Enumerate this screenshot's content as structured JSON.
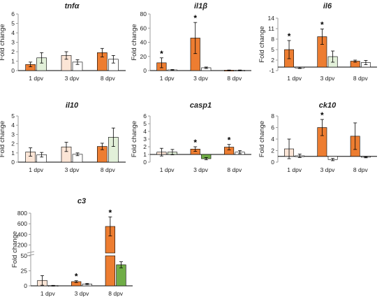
{
  "colors": {
    "orange": "#ED7D31",
    "light_orange": "#FBE5D6",
    "green": "#70AD47",
    "light_green": "#E2F0D9",
    "white": "#FFFFFF",
    "axis": "#9E9E9E",
    "text": "#222222"
  },
  "chart_data": [
    {
      "type": "bar",
      "title": "tnfα",
      "ylabel": "Fold change",
      "categories": [
        "1 dpv",
        "3 dpv",
        "8 dpv"
      ],
      "ylim": [
        0,
        6
      ],
      "yticks": [
        "0",
        "1",
        "2",
        "3",
        "4",
        "5",
        "6"
      ],
      "ytick_values": [
        0,
        1,
        2,
        3,
        4,
        5,
        6
      ],
      "grid": false,
      "bars": [
        [
          {
            "value": 0.65,
            "error": 0.25,
            "color": "orange",
            "star": false
          },
          {
            "value": 1.35,
            "error": 0.55,
            "color": "light_green",
            "star": false
          }
        ],
        [
          {
            "value": 1.6,
            "error": 0.4,
            "color": "light_orange",
            "star": false
          },
          {
            "value": 0.9,
            "error": 0.25,
            "color": "white",
            "star": false
          }
        ],
        [
          {
            "value": 1.9,
            "error": 0.45,
            "color": "orange",
            "star": false
          },
          {
            "value": 1.2,
            "error": 0.4,
            "color": "white",
            "star": false
          }
        ]
      ]
    },
    {
      "type": "bar",
      "title": "il1β",
      "ylabel": "Fold change",
      "categories": [
        "1 dpv",
        "3 dpv",
        "8 dpv"
      ],
      "ylim": [
        0,
        80
      ],
      "yticks": [
        "0",
        "20",
        "40",
        "60",
        "80"
      ],
      "ytick_values": [
        0,
        20,
        40,
        60,
        80
      ],
      "grid": false,
      "bars": [
        [
          {
            "value": 11,
            "error": 7,
            "color": "orange",
            "star": true
          },
          {
            "value": 1,
            "error": 0.5,
            "color": "white",
            "star": false
          }
        ],
        [
          {
            "value": 46,
            "error": 22,
            "color": "orange",
            "star": true
          },
          {
            "value": 4,
            "error": 1,
            "color": "white",
            "star": false
          }
        ],
        [
          {
            "value": 0.5,
            "error": 0.3,
            "color": "orange",
            "star": false
          },
          {
            "value": 0.5,
            "error": 0.3,
            "color": "white",
            "star": false
          }
        ]
      ]
    },
    {
      "type": "bar",
      "title": "il6",
      "ylabel": "Fold change",
      "categories": [
        "1 dpv",
        "3 dpv",
        "8 dpv"
      ],
      "ylim": [
        -1,
        14
      ],
      "yticks": [
        "-1",
        "2",
        "5",
        "8",
        "11",
        "14"
      ],
      "ytick_values": [
        -1,
        2,
        5,
        8,
        11,
        14
      ],
      "baseline": 0,
      "grid": false,
      "bars": [
        [
          {
            "value": 5,
            "error": 2.6,
            "color": "orange",
            "star": true
          },
          {
            "value": -0.2,
            "error": 0.2,
            "color": "white",
            "star": false
          }
        ],
        [
          {
            "value": 8.7,
            "error": 2.2,
            "color": "orange",
            "star": true
          },
          {
            "value": 3,
            "error": 1.6,
            "color": "light_green",
            "star": false
          }
        ],
        [
          {
            "value": 1.7,
            "error": 0.3,
            "color": "orange",
            "star": false
          },
          {
            "value": 1.3,
            "error": 0.6,
            "color": "white",
            "star": false
          }
        ]
      ]
    },
    {
      "type": "bar",
      "title": "il10",
      "ylabel": "Fold change",
      "categories": [
        "1 dpv",
        "3 dpv",
        "8 dpv"
      ],
      "ylim": [
        0,
        5
      ],
      "yticks": [
        "0",
        "1",
        "2",
        "3",
        "4",
        "5"
      ],
      "ytick_values": [
        0,
        1,
        2,
        3,
        4,
        5
      ],
      "grid": false,
      "bars": [
        [
          {
            "value": 1.1,
            "error": 0.45,
            "color": "light_orange",
            "star": false
          },
          {
            "value": 0.8,
            "error": 0.25,
            "color": "white",
            "star": false
          }
        ],
        [
          {
            "value": 1.65,
            "error": 0.5,
            "color": "light_orange",
            "star": false
          },
          {
            "value": 0.85,
            "error": 0.15,
            "color": "white",
            "star": false
          }
        ],
        [
          {
            "value": 1.7,
            "error": 0.35,
            "color": "orange",
            "star": false
          },
          {
            "value": 2.7,
            "error": 1.0,
            "color": "light_green",
            "star": false
          }
        ]
      ]
    },
    {
      "type": "bar",
      "title": "casp1",
      "ylabel": "Fold change",
      "categories": [
        "1 dpv",
        "3 dpv",
        "8 dpv"
      ],
      "ylim": [
        0,
        6
      ],
      "yticks": [
        "0",
        "1",
        "2",
        "3",
        "4",
        "5",
        "6"
      ],
      "ytick_values": [
        0,
        1,
        2,
        3,
        4,
        5,
        6
      ],
      "baseline": 1,
      "grid": false,
      "bars": [
        [
          {
            "value": 1.3,
            "error": 0.5,
            "color": "light_orange",
            "star": false
          },
          {
            "value": 1.3,
            "error": 0.35,
            "color": "light_green",
            "star": false
          }
        ],
        [
          {
            "value": 1.7,
            "error": 0.3,
            "color": "orange",
            "star": true
          },
          {
            "value": 0.45,
            "error": 0.15,
            "color": "green",
            "star": false
          }
        ],
        [
          {
            "value": 1.95,
            "error": 0.35,
            "color": "orange",
            "star": true
          },
          {
            "value": 1.3,
            "error": 0.2,
            "color": "white",
            "star": false
          }
        ]
      ]
    },
    {
      "type": "bar",
      "title": "ck10",
      "ylabel": "Fold change",
      "categories": [
        "1 dpv",
        "3 dpv",
        "8 dpv"
      ],
      "ylim": [
        0,
        8
      ],
      "yticks": [
        "0",
        "2",
        "4",
        "6",
        "8"
      ],
      "ytick_values": [
        0,
        2,
        4,
        6,
        8
      ],
      "baseline": 1,
      "grid": false,
      "bars": [
        [
          {
            "value": 2.3,
            "error": 1.7,
            "color": "light_orange",
            "star": false
          },
          {
            "value": 1.1,
            "error": 0.3,
            "color": "white",
            "star": false
          }
        ],
        [
          {
            "value": 6.0,
            "error": 1.4,
            "color": "orange",
            "star": true
          },
          {
            "value": 0.45,
            "error": 0.2,
            "color": "white",
            "star": false
          }
        ],
        [
          {
            "value": 4.5,
            "error": 2.3,
            "color": "orange",
            "star": false
          },
          {
            "value": 0.85,
            "error": 0.1,
            "color": "white",
            "star": false
          }
        ]
      ]
    },
    {
      "type": "bar",
      "title": "c3",
      "ylabel": "Fold change",
      "categories": [
        "1 dpv",
        "3 dpv",
        "8 dpv"
      ],
      "ylim": [
        0,
        800
      ],
      "yticks": [
        "0",
        "25",
        "50",
        "200",
        "400",
        "600",
        "800"
      ],
      "broken_axis": {
        "lower_range": [
          0,
          50
        ],
        "upper_range": [
          50,
          800
        ]
      },
      "grid": false,
      "bars": [
        [
          {
            "value": 9,
            "error": 8,
            "color": "light_orange",
            "star": false
          },
          {
            "value": 0.5,
            "error": 0.3,
            "color": "white",
            "star": false
          }
        ],
        [
          {
            "value": 7,
            "error": 1.5,
            "color": "orange",
            "star": true
          },
          {
            "value": 3,
            "error": 1,
            "color": "white",
            "star": false
          }
        ],
        [
          {
            "value": 550,
            "error": 180,
            "color": "orange",
            "star": true
          },
          {
            "value": 35,
            "error": 5,
            "color": "green",
            "star": false
          }
        ]
      ]
    }
  ]
}
